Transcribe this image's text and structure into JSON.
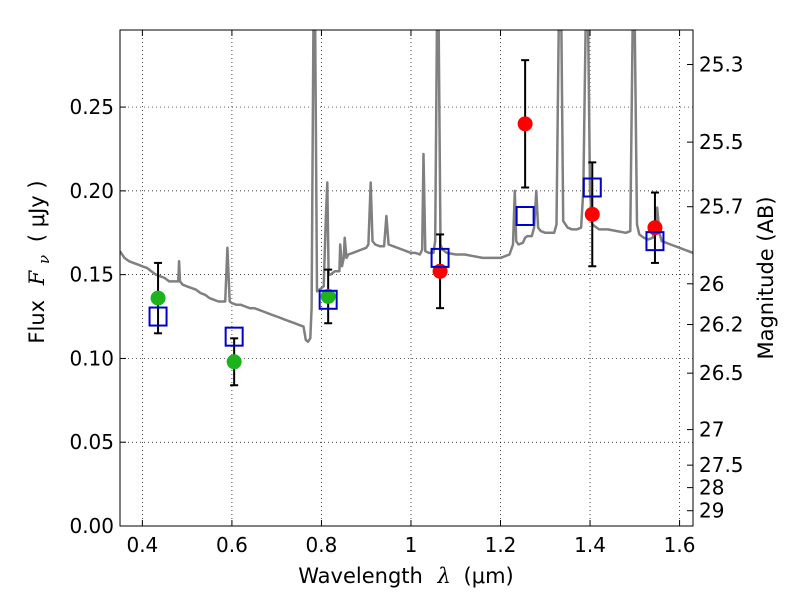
{
  "chart_data": {
    "type": "scatter",
    "xlabel_text": "Wavelength",
    "xlabel_symbol": "λ",
    "xlabel_unit": "(μm)",
    "ylabel_text": "Flux",
    "ylabel_symbol": "F",
    "ylabel_sub": "ν",
    "ylabel_unit": "( μJy )",
    "y2label": "Magnitude (AB)",
    "xlim": [
      0.35,
      1.63
    ],
    "ylim": [
      0.0,
      0.296
    ],
    "xticks": [
      0.4,
      0.6,
      0.8,
      1.0,
      1.2,
      1.4,
      1.6
    ],
    "xtick_labels": [
      "0.4",
      "0.6",
      "0.8",
      "1",
      "1.2",
      "1.4",
      "1.6"
    ],
    "yticks": [
      0.0,
      0.05,
      0.1,
      0.15,
      0.2,
      0.25
    ],
    "ytick_labels": [
      "0.00",
      "0.05",
      "0.10",
      "0.15",
      "0.20",
      "0.25"
    ],
    "y2_ticks": [
      {
        "label": "25.3",
        "mag": 25.3
      },
      {
        "label": "25.5",
        "mag": 25.5
      },
      {
        "label": "25.7",
        "mag": 25.7
      },
      {
        "label": "26",
        "mag": 26.0
      },
      {
        "label": "26.2",
        "mag": 26.2
      },
      {
        "label": "26.5",
        "mag": 26.5
      },
      {
        "label": "27",
        "mag": 27.0
      },
      {
        "label": "27.5",
        "mag": 27.5
      },
      {
        "label": "28",
        "mag": 28.0
      },
      {
        "label": "29",
        "mag": 29.0
      }
    ],
    "grid": true,
    "colors": {
      "model": "#808080",
      "green": "#1db31d",
      "red": "#ff0000",
      "blue": "#0000cc",
      "errorbar": "#000000"
    },
    "series": [
      {
        "name": "model spectrum",
        "kind": "line",
        "color": "#808080",
        "points": [
          [
            0.35,
            0.164
          ],
          [
            0.36,
            0.16
          ],
          [
            0.37,
            0.158
          ],
          [
            0.38,
            0.157
          ],
          [
            0.39,
            0.156
          ],
          [
            0.4,
            0.155
          ],
          [
            0.41,
            0.154
          ],
          [
            0.42,
            0.152
          ],
          [
            0.43,
            0.15
          ],
          [
            0.44,
            0.149
          ],
          [
            0.45,
            0.148
          ],
          [
            0.455,
            0.147
          ],
          [
            0.46,
            0.146
          ],
          [
            0.47,
            0.146
          ],
          [
            0.48,
            0.146
          ],
          [
            0.482,
            0.158
          ],
          [
            0.484,
            0.146
          ],
          [
            0.49,
            0.144
          ],
          [
            0.5,
            0.143
          ],
          [
            0.51,
            0.142
          ],
          [
            0.52,
            0.141
          ],
          [
            0.53,
            0.139
          ],
          [
            0.54,
            0.138
          ],
          [
            0.55,
            0.136
          ],
          [
            0.56,
            0.135
          ],
          [
            0.57,
            0.134
          ],
          [
            0.58,
            0.134
          ],
          [
            0.585,
            0.134
          ],
          [
            0.59,
            0.166
          ],
          [
            0.595,
            0.134
          ],
          [
            0.6,
            0.133
          ],
          [
            0.61,
            0.132
          ],
          [
            0.62,
            0.132
          ],
          [
            0.63,
            0.131
          ],
          [
            0.64,
            0.13
          ],
          [
            0.65,
            0.13
          ],
          [
            0.66,
            0.129
          ],
          [
            0.67,
            0.128
          ],
          [
            0.68,
            0.127
          ],
          [
            0.69,
            0.126
          ],
          [
            0.7,
            0.125
          ],
          [
            0.71,
            0.124
          ],
          [
            0.72,
            0.123
          ],
          [
            0.73,
            0.122
          ],
          [
            0.74,
            0.121
          ],
          [
            0.75,
            0.12
          ],
          [
            0.76,
            0.119
          ],
          [
            0.765,
            0.111
          ],
          [
            0.77,
            0.11
          ],
          [
            0.775,
            0.112
          ],
          [
            0.778,
            0.13
          ],
          [
            0.782,
            0.296
          ],
          [
            0.786,
            0.296
          ],
          [
            0.79,
            0.14
          ],
          [
            0.8,
            0.142
          ],
          [
            0.805,
            0.143
          ],
          [
            0.81,
            0.185
          ],
          [
            0.813,
            0.205
          ],
          [
            0.816,
            0.15
          ],
          [
            0.82,
            0.15
          ],
          [
            0.83,
            0.152
          ],
          [
            0.84,
            0.152
          ],
          [
            0.842,
            0.168
          ],
          [
            0.846,
            0.155
          ],
          [
            0.85,
            0.16
          ],
          [
            0.852,
            0.172
          ],
          [
            0.856,
            0.16
          ],
          [
            0.86,
            0.162
          ],
          [
            0.87,
            0.163
          ],
          [
            0.88,
            0.164
          ],
          [
            0.89,
            0.165
          ],
          [
            0.9,
            0.166
          ],
          [
            0.905,
            0.168
          ],
          [
            0.91,
            0.205
          ],
          [
            0.914,
            0.17
          ],
          [
            0.92,
            0.168
          ],
          [
            0.93,
            0.167
          ],
          [
            0.94,
            0.167
          ],
          [
            0.945,
            0.185
          ],
          [
            0.95,
            0.168
          ],
          [
            0.96,
            0.167
          ],
          [
            0.97,
            0.166
          ],
          [
            0.98,
            0.165
          ],
          [
            0.99,
            0.164
          ],
          [
            1.0,
            0.163
          ],
          [
            1.01,
            0.163
          ],
          [
            1.02,
            0.162
          ],
          [
            1.025,
            0.165
          ],
          [
            1.028,
            0.222
          ],
          [
            1.032,
            0.164
          ],
          [
            1.04,
            0.163
          ],
          [
            1.05,
            0.163
          ],
          [
            1.054,
            0.17
          ],
          [
            1.058,
            0.296
          ],
          [
            1.062,
            0.296
          ],
          [
            1.066,
            0.168
          ],
          [
            1.07,
            0.165
          ],
          [
            1.08,
            0.163
          ],
          [
            1.1,
            0.162
          ],
          [
            1.12,
            0.162
          ],
          [
            1.14,
            0.161
          ],
          [
            1.16,
            0.16
          ],
          [
            1.18,
            0.16
          ],
          [
            1.2,
            0.16
          ],
          [
            1.22,
            0.162
          ],
          [
            1.228,
            0.168
          ],
          [
            1.232,
            0.2
          ],
          [
            1.235,
            0.17
          ],
          [
            1.24,
            0.168
          ],
          [
            1.25,
            0.169
          ],
          [
            1.255,
            0.172
          ],
          [
            1.26,
            0.173
          ],
          [
            1.27,
            0.173
          ],
          [
            1.275,
            0.178
          ],
          [
            1.28,
            0.2
          ],
          [
            1.284,
            0.178
          ],
          [
            1.29,
            0.176
          ],
          [
            1.3,
            0.175
          ],
          [
            1.31,
            0.175
          ],
          [
            1.32,
            0.175
          ],
          [
            1.325,
            0.18
          ],
          [
            1.33,
            0.296
          ],
          [
            1.336,
            0.296
          ],
          [
            1.34,
            0.182
          ],
          [
            1.35,
            0.178
          ],
          [
            1.36,
            0.177
          ],
          [
            1.37,
            0.177
          ],
          [
            1.38,
            0.178
          ],
          [
            1.385,
            0.2
          ],
          [
            1.39,
            0.296
          ],
          [
            1.396,
            0.296
          ],
          [
            1.4,
            0.2
          ],
          [
            1.405,
            0.18
          ],
          [
            1.42,
            0.177
          ],
          [
            1.44,
            0.177
          ],
          [
            1.46,
            0.176
          ],
          [
            1.48,
            0.175
          ],
          [
            1.49,
            0.176
          ],
          [
            1.495,
            0.296
          ],
          [
            1.5,
            0.296
          ],
          [
            1.505,
            0.18
          ],
          [
            1.51,
            0.174
          ],
          [
            1.52,
            0.172
          ],
          [
            1.53,
            0.171
          ],
          [
            1.54,
            0.172
          ],
          [
            1.545,
            0.178
          ],
          [
            1.55,
            0.19
          ],
          [
            1.555,
            0.175
          ],
          [
            1.56,
            0.17
          ],
          [
            1.58,
            0.168
          ],
          [
            1.6,
            0.166
          ],
          [
            1.61,
            0.165
          ],
          [
            1.62,
            0.164
          ],
          [
            1.63,
            0.163
          ]
        ]
      },
      {
        "name": "green photometry",
        "kind": "circle",
        "color": "#1db31d",
        "points": [
          {
            "x": 0.435,
            "y": 0.136,
            "err": 0.021
          },
          {
            "x": 0.605,
            "y": 0.098,
            "err": 0.014
          },
          {
            "x": 0.815,
            "y": 0.137,
            "err": 0.016
          }
        ]
      },
      {
        "name": "red photometry",
        "kind": "circle",
        "color": "#ff0000",
        "points": [
          {
            "x": 1.065,
            "y": 0.152,
            "err": 0.022
          },
          {
            "x": 1.255,
            "y": 0.24,
            "err": 0.038
          },
          {
            "x": 1.405,
            "y": 0.186,
            "err": 0.031
          },
          {
            "x": 1.545,
            "y": 0.178,
            "err": 0.021
          }
        ]
      },
      {
        "name": "model band fluxes",
        "kind": "square",
        "color": "#0000cc",
        "points": [
          {
            "x": 0.435,
            "y": 0.125
          },
          {
            "x": 0.605,
            "y": 0.113
          },
          {
            "x": 0.815,
            "y": 0.135
          },
          {
            "x": 1.065,
            "y": 0.16
          },
          {
            "x": 1.255,
            "y": 0.185
          },
          {
            "x": 1.405,
            "y": 0.202
          },
          {
            "x": 1.545,
            "y": 0.17
          }
        ]
      }
    ]
  }
}
